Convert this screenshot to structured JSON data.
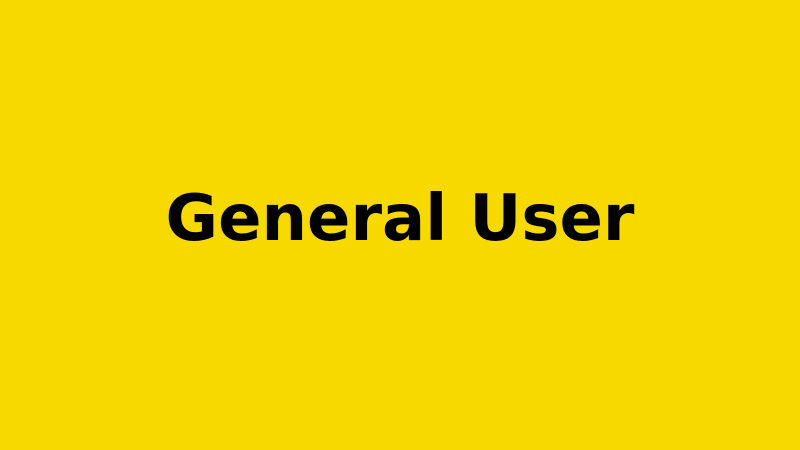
{
  "slide": {
    "title": "General User",
    "background_color": "#F7D900",
    "text_color": "#000000"
  }
}
